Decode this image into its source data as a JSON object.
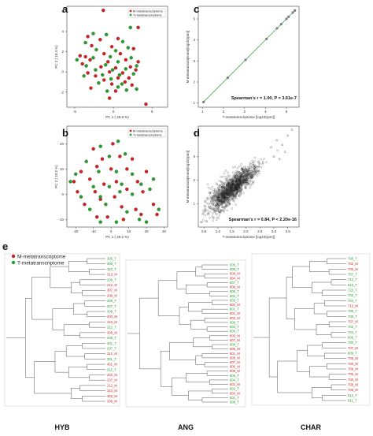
{
  "colors": {
    "M": "#d21f1f",
    "T": "#22a02a",
    "line": "#33a24a",
    "tree": "#555555"
  },
  "panel_e_letter": "e",
  "legend_e": {
    "M": "M-metatranscriptome",
    "T": "T-metatranscriptome"
  },
  "chart_data": [
    {
      "panel": "a",
      "type": "scatter",
      "xlabel": "PC 1 ( 26.8 %)",
      "ylabel": "PC 2 ( 10.4 %)",
      "xlim": [
        -6,
        7
      ],
      "ylim": [
        -3.5,
        6.5
      ],
      "xticks": [
        "-5",
        "0",
        "5"
      ],
      "xtickvals": [
        -5,
        0,
        5
      ],
      "yticks": [
        "-2",
        "0",
        "2",
        "4",
        "6"
      ],
      "ytickvals": [
        -2,
        0,
        2,
        4,
        6
      ],
      "legend": [
        "M-metatranscriptome",
        "T-metatranscriptome"
      ],
      "series": [
        {
          "name": "M-metatranscriptome",
          "color": "#d21f1f",
          "points": [
            [
              -1.3,
              6.1
            ],
            [
              3.2,
              4.4
            ],
            [
              -3.3,
              3.5
            ],
            [
              -1.7,
              3.2
            ],
            [
              0.6,
              3.3
            ],
            [
              -2.8,
              2.6
            ],
            [
              -0.2,
              2.5
            ],
            [
              2.6,
              2.3
            ],
            [
              -4.3,
              1.6
            ],
            [
              -3.6,
              1.5
            ],
            [
              -1.2,
              1.8
            ],
            [
              0.9,
              1.8
            ],
            [
              -3.0,
              1.2
            ],
            [
              -0.7,
              1.0
            ],
            [
              1.6,
              1.2
            ],
            [
              3.2,
              1.0
            ],
            [
              -4.0,
              0.8
            ],
            [
              -1.6,
              0.5
            ],
            [
              0.3,
              0.4
            ],
            [
              2.2,
              0.5
            ],
            [
              -3.3,
              -0.1
            ],
            [
              -0.5,
              0.0
            ],
            [
              1.2,
              -0.1
            ],
            [
              2.9,
              0.2
            ],
            [
              -2.3,
              -0.4
            ],
            [
              0.6,
              -0.6
            ],
            [
              2.0,
              -0.6
            ],
            [
              -1.2,
              -0.8
            ],
            [
              1.5,
              -1.0
            ],
            [
              -0.2,
              -1.2
            ],
            [
              2.4,
              -1.3
            ],
            [
              0.3,
              -1.9
            ],
            [
              -0.5,
              -2.6
            ],
            [
              4.2,
              -3.2
            ],
            [
              -2.9,
              -1.6
            ]
          ]
        },
        {
          "name": "T-metatranscriptome",
          "color": "#22a02a",
          "points": [
            [
              2.2,
              4.4
            ],
            [
              -2.6,
              3.8
            ],
            [
              -0.9,
              3.7
            ],
            [
              1.2,
              3.0
            ],
            [
              -3.6,
              2.9
            ],
            [
              -2.2,
              2.2
            ],
            [
              0.3,
              2.1
            ],
            [
              1.9,
              2.4
            ],
            [
              -4.7,
              1.2
            ],
            [
              -2.6,
              1.4
            ],
            [
              -0.4,
              1.5
            ],
            [
              2.3,
              1.4
            ],
            [
              -3.5,
              0.6
            ],
            [
              -1.0,
              0.7
            ],
            [
              0.6,
              1.0
            ],
            [
              3.0,
              0.6
            ],
            [
              -2.3,
              0.2
            ],
            [
              -0.1,
              0.2
            ],
            [
              1.6,
              0.3
            ],
            [
              -3.8,
              -0.4
            ],
            [
              -1.4,
              -0.3
            ],
            [
              0.8,
              -0.3
            ],
            [
              2.6,
              -0.2
            ],
            [
              -0.3,
              -0.7
            ],
            [
              1.1,
              -1.2
            ],
            [
              -1.9,
              -1.1
            ],
            [
              0.6,
              -1.5
            ],
            [
              1.7,
              -1.8
            ],
            [
              -0.8,
              -1.9
            ],
            [
              3.0,
              -1.7
            ]
          ]
        }
      ]
    },
    {
      "panel": "b",
      "type": "scatter",
      "xlabel": "PC 1 ( 26.2 %)",
      "ylabel": "PC 2 ( 10.2 %)",
      "xlim": [
        -25,
        32
      ],
      "ylim": [
        -13,
        27
      ],
      "xticks": [
        "-20",
        "-10",
        "0",
        "10",
        "20",
        "30"
      ],
      "xtickvals": [
        -20,
        -10,
        0,
        10,
        20,
        30
      ],
      "yticks": [
        "-10",
        "0",
        "10",
        "20"
      ],
      "ytickvals": [
        -10,
        0,
        10,
        20
      ],
      "legend": [
        "M-metatranscriptome",
        "T-metatranscriptome"
      ],
      "series": [
        {
          "name": "M-metatranscriptome",
          "color": "#d21f1f",
          "points": [
            [
              -10,
              18
            ],
            [
              1,
              20
            ],
            [
              -5,
              14
            ],
            [
              5,
              15
            ],
            [
              12,
              14
            ],
            [
              -17,
              9
            ],
            [
              -8,
              11
            ],
            [
              0,
              10
            ],
            [
              9,
              10
            ],
            [
              20,
              9
            ],
            [
              -21,
              5
            ],
            [
              -12,
              6
            ],
            [
              -4,
              4
            ],
            [
              3,
              5
            ],
            [
              15,
              5
            ],
            [
              -19,
              1
            ],
            [
              -9,
              1
            ],
            [
              2,
              -1
            ],
            [
              9,
              2
            ],
            [
              18,
              1
            ],
            [
              -15,
              -4
            ],
            [
              -6,
              -2
            ],
            [
              6,
              -5
            ],
            [
              14,
              -6
            ],
            [
              -2,
              -9
            ],
            [
              7,
              -10
            ],
            [
              17,
              -8
            ],
            [
              -8,
              -9
            ],
            [
              24,
              -4
            ],
            [
              26,
              -8
            ]
          ]
        },
        {
          "name": "T-metatranscriptome",
          "color": "#22a02a",
          "points": [
            [
              -6,
              19
            ],
            [
              4,
              21
            ],
            [
              -1,
              15
            ],
            [
              8,
              16
            ],
            [
              -14,
              13
            ],
            [
              -20,
              8
            ],
            [
              -7,
              9
            ],
            [
              3,
              9
            ],
            [
              12,
              8
            ],
            [
              24,
              6
            ],
            [
              -23,
              5
            ],
            [
              -10,
              3
            ],
            [
              -1,
              3
            ],
            [
              6,
              4
            ],
            [
              17,
              4
            ],
            [
              -17,
              -1
            ],
            [
              -6,
              -1
            ],
            [
              5,
              1
            ],
            [
              12,
              0
            ],
            [
              22,
              2
            ],
            [
              -12,
              -6
            ],
            [
              -3,
              -4
            ],
            [
              9,
              -7
            ],
            [
              16,
              -10
            ],
            [
              -6,
              -11
            ],
            [
              3,
              -11
            ],
            [
              20,
              -11
            ],
            [
              27,
              -6
            ]
          ]
        }
      ]
    },
    {
      "panel": "c",
      "type": "scatter",
      "xlabel": "T-metatranscriptome [log10(rpm)]",
      "ylabel": "M-metatranscriptome[log10(rpm)]",
      "xlim": [
        0.8,
        5.6
      ],
      "ylim": [
        0.8,
        5.6
      ],
      "xticks": [
        "1",
        "2",
        "3",
        "4",
        "5"
      ],
      "xtickvals": [
        1,
        2,
        3,
        4,
        5
      ],
      "yticks": [
        "1",
        "2",
        "3",
        "4",
        "5"
      ],
      "ytickvals": [
        1,
        2,
        3,
        4,
        5
      ],
      "annotation": "Spearman's r = 1.00,  P = 3.61e-7",
      "fit": [
        [
          1.0,
          1.0
        ],
        [
          5.45,
          5.45
        ]
      ],
      "points": [
        [
          1.05,
          1.05
        ],
        [
          2.2,
          2.2
        ],
        [
          3.05,
          3.05
        ],
        [
          4.05,
          4.05
        ],
        [
          4.55,
          4.55
        ],
        [
          4.75,
          4.75
        ],
        [
          5.0,
          5.0
        ],
        [
          5.1,
          5.1
        ],
        [
          5.3,
          5.3
        ],
        [
          5.4,
          5.4
        ]
      ]
    },
    {
      "panel": "d",
      "type": "scatter",
      "xlabel": "T-metatranscriptome [log10(rpm)]",
      "ylabel": "M-metatranscriptome[log10(rpm)]",
      "xlim": [
        0.3,
        3.9
      ],
      "ylim": [
        0,
        4.3
      ],
      "xticks": [
        "0.5",
        "1.0",
        "1.5",
        "2.0",
        "2.5",
        "3.0",
        "3.5"
      ],
      "xtickvals": [
        0.5,
        1.0,
        1.5,
        2.0,
        2.5,
        3.0,
        3.5
      ],
      "yticks": [
        "1",
        "2",
        "3",
        "4"
      ],
      "ytickvals": [
        1,
        2,
        3,
        4
      ],
      "annotation": "Spearman's r = 0.84,  P < 2.20e-16",
      "cloud": {
        "center": [
          1.5,
          1.65
        ],
        "slope": 0.95,
        "spread": 0.32,
        "xrange": [
          0.35,
          3.7
        ],
        "count": 1400
      }
    }
  ],
  "trees": [
    {
      "title": "HYB",
      "leaves": [
        [
          "305_T",
          "T"
        ],
        [
          "308_T",
          "T"
        ],
        [
          "310_T",
          "T"
        ],
        [
          "313_M",
          "M"
        ],
        [
          "209_T",
          "T"
        ],
        [
          "212_M",
          "M"
        ],
        [
          "307_M",
          "M"
        ],
        [
          "209_M",
          "M"
        ],
        [
          "406_T",
          "T"
        ],
        [
          "307_T",
          "T"
        ],
        [
          "306_T",
          "T"
        ],
        [
          "200_M",
          "M"
        ],
        [
          "210_M",
          "M"
        ],
        [
          "212_T",
          "T"
        ],
        [
          "305_M",
          "M"
        ],
        [
          "406_T",
          "T"
        ],
        [
          "401_T",
          "T"
        ],
        [
          "207_T",
          "T"
        ],
        [
          "312_M",
          "M"
        ],
        [
          "301_T",
          "T"
        ],
        [
          "401_M",
          "M"
        ],
        [
          "312_T",
          "T"
        ],
        [
          "202_M",
          "M"
        ],
        [
          "207_M",
          "M"
        ],
        [
          "212_M",
          "M"
        ],
        [
          "310_M",
          "M"
        ],
        [
          "302_M",
          "M"
        ],
        [
          "306_M",
          "M"
        ]
      ]
    },
    {
      "title": "ANG",
      "leaves": [
        [
          "305_T",
          "T"
        ],
        [
          "808_T",
          "T"
        ],
        [
          "809_M",
          "M"
        ],
        [
          "804_M",
          "M"
        ],
        [
          "807_T",
          "T"
        ],
        [
          "806_M",
          "M"
        ],
        [
          "805_T",
          "T"
        ],
        [
          "804_T",
          "T"
        ],
        [
          "803_T",
          "T"
        ],
        [
          "802_M",
          "M"
        ],
        [
          "801_T",
          "T"
        ],
        [
          "801_M",
          "M"
        ],
        [
          "803_M",
          "M"
        ],
        [
          "809_T",
          "T"
        ],
        [
          "803_T",
          "T"
        ],
        [
          "806_T",
          "T"
        ],
        [
          "805_M",
          "M"
        ],
        [
          "807_M",
          "M"
        ],
        [
          "808_T",
          "T"
        ],
        [
          "805_M",
          "M"
        ],
        [
          "801_M",
          "M"
        ],
        [
          "809_M",
          "M"
        ],
        [
          "807_M",
          "M"
        ],
        [
          "806_M",
          "M"
        ],
        [
          "808_M",
          "M"
        ],
        [
          "805_T",
          "T"
        ],
        [
          "804_T",
          "T"
        ],
        [
          "802_M",
          "M"
        ],
        [
          "802_T",
          "T"
        ],
        [
          "803_M",
          "M"
        ],
        [
          "801_T",
          "T"
        ],
        [
          "806_T",
          "T"
        ]
      ]
    },
    {
      "title": "CHAR",
      "leaves": [
        [
          "706_T",
          "T"
        ],
        [
          "702_M",
          "M"
        ],
        [
          "705_M",
          "M"
        ],
        [
          "707_T",
          "T"
        ],
        [
          "712_T",
          "T"
        ],
        [
          "613_T",
          "T"
        ],
        [
          "723_T",
          "T"
        ],
        [
          "702_T",
          "T"
        ],
        [
          "704_T",
          "T"
        ],
        [
          "712_M",
          "M"
        ],
        [
          "705_T",
          "T"
        ],
        [
          "708_T",
          "T"
        ],
        [
          "707_M",
          "M"
        ],
        [
          "702_T",
          "T"
        ],
        [
          "704_T",
          "T"
        ],
        [
          "606_T",
          "T"
        ],
        [
          "700_T",
          "T"
        ],
        [
          "707_M",
          "M"
        ],
        [
          "609_T",
          "T"
        ],
        [
          "708_M",
          "M"
        ],
        [
          "700_M",
          "M"
        ],
        [
          "706_M",
          "M"
        ],
        [
          "705_M",
          "M"
        ],
        [
          "706_M",
          "M"
        ],
        [
          "708_M",
          "M"
        ],
        [
          "706_M",
          "M"
        ],
        [
          "612_T",
          "T"
        ],
        [
          "611_T",
          "T"
        ]
      ]
    }
  ]
}
